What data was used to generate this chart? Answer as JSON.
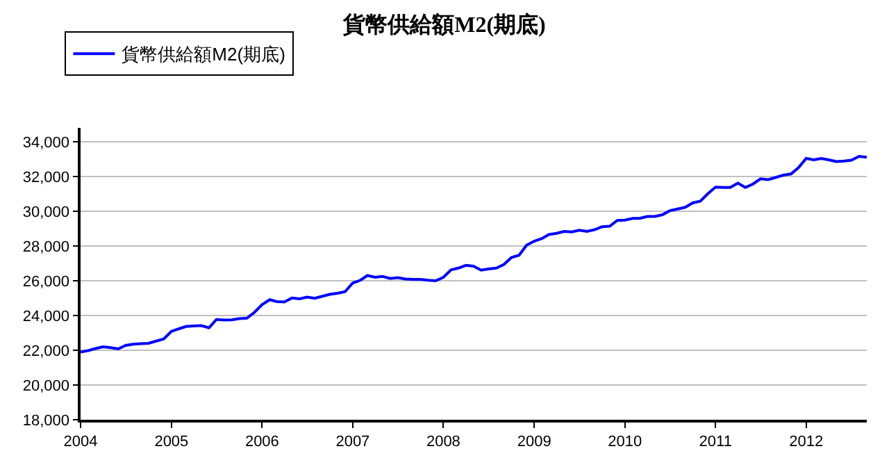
{
  "chart_data": {
    "type": "line",
    "title": "貨幣供給額M2(期底)",
    "x": [
      "2004-01",
      "2004-02",
      "2004-03",
      "2004-04",
      "2004-05",
      "2004-06",
      "2004-07",
      "2004-08",
      "2004-09",
      "2004-10",
      "2004-11",
      "2004-12",
      "2005-01",
      "2005-02",
      "2005-03",
      "2005-04",
      "2005-05",
      "2005-06",
      "2005-07",
      "2005-08",
      "2005-09",
      "2005-10",
      "2005-11",
      "2005-12",
      "2006-01",
      "2006-02",
      "2006-03",
      "2006-04",
      "2006-05",
      "2006-06",
      "2006-07",
      "2006-08",
      "2006-09",
      "2006-10",
      "2006-11",
      "2006-12",
      "2007-01",
      "2007-02",
      "2007-03",
      "2007-04",
      "2007-05",
      "2007-06",
      "2007-07",
      "2007-08",
      "2007-09",
      "2007-10",
      "2007-11",
      "2007-12",
      "2008-01",
      "2008-02",
      "2008-03",
      "2008-04",
      "2008-05",
      "2008-06",
      "2008-07",
      "2008-08",
      "2008-09",
      "2008-10",
      "2008-11",
      "2008-12",
      "2009-01",
      "2009-02",
      "2009-03",
      "2009-04",
      "2009-05",
      "2009-06",
      "2009-07",
      "2009-08",
      "2009-09",
      "2009-10",
      "2009-11",
      "2009-12",
      "2010-01",
      "2010-02",
      "2010-03",
      "2010-04",
      "2010-05",
      "2010-06",
      "2010-07",
      "2010-08",
      "2010-09",
      "2010-10",
      "2010-11",
      "2010-12",
      "2011-01",
      "2011-02",
      "2011-03",
      "2011-04",
      "2011-05",
      "2011-06",
      "2011-07",
      "2011-08",
      "2011-09",
      "2011-10",
      "2011-11",
      "2011-12",
      "2012-01",
      "2012-02",
      "2012-03",
      "2012-04",
      "2012-05",
      "2012-06",
      "2012-07",
      "2012-08",
      "2012-09"
    ],
    "series": [
      {
        "name": "貨幣供給額M2(期底)",
        "color": "#0000ff",
        "values": [
          21900,
          21980,
          22100,
          22200,
          22150,
          22080,
          22280,
          22350,
          22380,
          22400,
          22530,
          22650,
          23090,
          23240,
          23370,
          23400,
          23420,
          23290,
          23770,
          23740,
          23750,
          23820,
          23850,
          24180,
          24630,
          24910,
          24800,
          24780,
          25010,
          24960,
          25060,
          24990,
          25110,
          25220,
          25280,
          25370,
          25870,
          26030,
          26300,
          26200,
          26250,
          26130,
          26180,
          26100,
          26080,
          26080,
          26030,
          26000,
          26200,
          26630,
          26730,
          26890,
          26840,
          26610,
          26680,
          26730,
          26940,
          27340,
          27470,
          28050,
          28280,
          28430,
          28660,
          28730,
          28840,
          28810,
          28910,
          28840,
          28940,
          29110,
          29140,
          29470,
          29490,
          29590,
          29590,
          29700,
          29700,
          29800,
          30030,
          30130,
          30230,
          30480,
          30580,
          31010,
          31390,
          31370,
          31370,
          31620,
          31370,
          31570,
          31870,
          31820,
          31950,
          32080,
          32150,
          32510,
          33040,
          32960,
          33040,
          32960,
          32860,
          32890,
          32940,
          33160,
          33110
        ]
      }
    ],
    "xlim": [
      "2004-01",
      "2012-09"
    ],
    "xticks": [
      "2004",
      "2005",
      "2006",
      "2007",
      "2008",
      "2009",
      "2010",
      "2011",
      "2012"
    ],
    "ylim": [
      18000,
      34800
    ],
    "yticks": [
      {
        "value": 18000,
        "label": "18,000"
      },
      {
        "value": 20000,
        "label": "20,000"
      },
      {
        "value": 22000,
        "label": "22,000"
      },
      {
        "value": 24000,
        "label": "24,000"
      },
      {
        "value": 26000,
        "label": "26,000"
      },
      {
        "value": 28000,
        "label": "28,000"
      },
      {
        "value": 30000,
        "label": "30,000"
      },
      {
        "value": 32000,
        "label": "32,000"
      },
      {
        "value": 34000,
        "label": "34,000"
      }
    ],
    "grid": "y",
    "legend": "top left",
    "marker": "none",
    "line_style": "solid"
  }
}
